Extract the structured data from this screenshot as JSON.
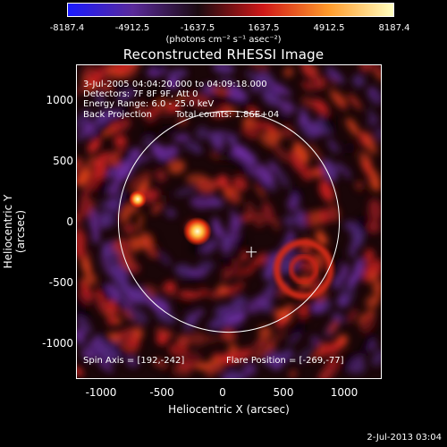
{
  "colorbar": {
    "ticks": [
      "-8187.4",
      "-4912.5",
      "-1637.5",
      "1637.5",
      "4912.5",
      "8187.4"
    ],
    "units": "(photons cm⁻² s⁻¹ asec⁻²)"
  },
  "title": "Reconstructed RHESSI Image",
  "info": {
    "time_range": "3-Jul-2005 04:04:20.000 to 04:09:18.000",
    "detectors": "Detectors: 7F 8F 9F, Att 0",
    "energy": "Energy Range: 6.0 - 25.0 keV",
    "method": "Back Projection",
    "counts": "Total counts: 1.86E+04",
    "spin_axis": "Spin Axis = [192,-242]",
    "flare_position": "Flare Position = [-269,-77]"
  },
  "axes": {
    "xlabel": "Heliocentric X (arcsec)",
    "ylabel": "Heliocentric Y (arcsec)",
    "xticks": [
      "-1000",
      "-500",
      "0",
      "500",
      "1000"
    ],
    "yticks": [
      "1000",
      "500",
      "0",
      "-500",
      "-1000"
    ]
  },
  "timestamp": "2-Jul-2013 03:04",
  "colors": {
    "colormap": [
      "#1a1aff",
      "#5a2a9a",
      "#1a0a10",
      "#d01818",
      "#ff9a2a",
      "#ffffc0"
    ]
  },
  "chart_data": {
    "type": "heatmap",
    "title": "Reconstructed RHESSI Image",
    "xlabel": "Heliocentric X (arcsec)",
    "ylabel": "Heliocentric Y (arcsec)",
    "xlim": [
      -1300,
      1300
    ],
    "ylim": [
      -1250,
      1250
    ],
    "color_range": [
      -8187.4,
      8187.4
    ],
    "solar_limb_radius_arcsec": 945,
    "spin_axis": [
      192,
      -242
    ],
    "flare_position": [
      -269,
      -77
    ]
  }
}
